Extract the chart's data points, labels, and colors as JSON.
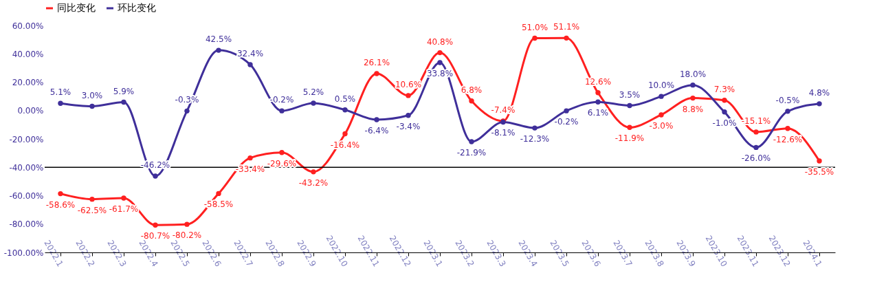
{
  "chart_data": {
    "type": "line",
    "categories": [
      "2022.1",
      "2022.2",
      "2022.3",
      "2022.4",
      "2022.5",
      "2022.6",
      "2022.7",
      "2022.8",
      "2022.9",
      "2022.10",
      "2022.11",
      "2022.12",
      "2023.1",
      "2023.2",
      "2023.3",
      "2023.4",
      "2023.5",
      "2023.6",
      "2023.7",
      "2023.8",
      "2023.9",
      "2023.10",
      "2023.11",
      "2023.12",
      "2024.1"
    ],
    "series": [
      {
        "name": "同比变化",
        "color": "#ff2020",
        "values": [
          -58.6,
          -62.5,
          -61.7,
          -80.7,
          -80.2,
          -58.5,
          -33.4,
          -29.6,
          -43.2,
          -16.4,
          26.1,
          10.6,
          40.8,
          6.8,
          -7.4,
          51.0,
          51.1,
          12.6,
          -11.9,
          -3.0,
          8.8,
          7.3,
          -15.1,
          -12.6,
          -35.5
        ],
        "value_labels": [
          "-58.6%",
          "-62.5%",
          "-61.7%",
          "-80.7%",
          "-80.2%",
          "-58.5%",
          "-33.4%",
          "-29.6%",
          "-43.2%",
          "-16.4%",
          "26.1%",
          "10.6%",
          "40.8%",
          "6.8%",
          "-7.4%",
          "51.0%",
          "51.1%",
          "12.6%",
          "-11.9%",
          "-3.0%",
          "8.8%",
          "7.3%",
          "-15.1%",
          "-12.6%",
          "-35.5%"
        ]
      },
      {
        "name": "环比变化",
        "color": "#3f2f9a",
        "values": [
          5.1,
          3.0,
          5.9,
          -46.2,
          -0.3,
          42.5,
          32.4,
          -0.2,
          5.2,
          0.5,
          -6.4,
          -3.4,
          33.8,
          -21.9,
          -8.1,
          -12.3,
          -0.2,
          6.1,
          3.5,
          10.0,
          18.0,
          -1.0,
          -26.0,
          -0.5,
          4.8
        ],
        "value_labels": [
          "5.1%",
          "3.0%",
          "5.9%",
          "-46.2%",
          "-0.3%",
          "42.5%",
          "32.4%",
          "-0.2%",
          "5.2%",
          "0.5%",
          "-6.4%",
          "-3.4%",
          "33.8%",
          "-21.9%",
          "-8.1%",
          "-12.3%",
          "-0.2%",
          "6.1%",
          "3.5%",
          "10.0%",
          "18.0%",
          "-1.0%",
          "-26.0%",
          "-0.5%",
          "4.8%"
        ]
      }
    ],
    "ylim": [
      -100,
      60
    ],
    "yticks": [
      {
        "value": -100,
        "label": "-100.00%"
      },
      {
        "value": -80,
        "label": "-80.00%"
      },
      {
        "value": -60,
        "label": "-60.00%"
      },
      {
        "value": -40,
        "label": "-40.00%"
      },
      {
        "value": -20,
        "label": "-20.00%"
      },
      {
        "value": 0,
        "label": "0.00%"
      },
      {
        "value": 20,
        "label": "20.00%"
      },
      {
        "value": 40,
        "label": "40.00%"
      },
      {
        "value": 60,
        "label": "60.00%"
      }
    ],
    "ref_lines": [
      {
        "axis": "y",
        "value": -40,
        "color": "#000000"
      }
    ],
    "grid": false,
    "legend": "top",
    "marker": "circle",
    "line_style": "solid"
  }
}
